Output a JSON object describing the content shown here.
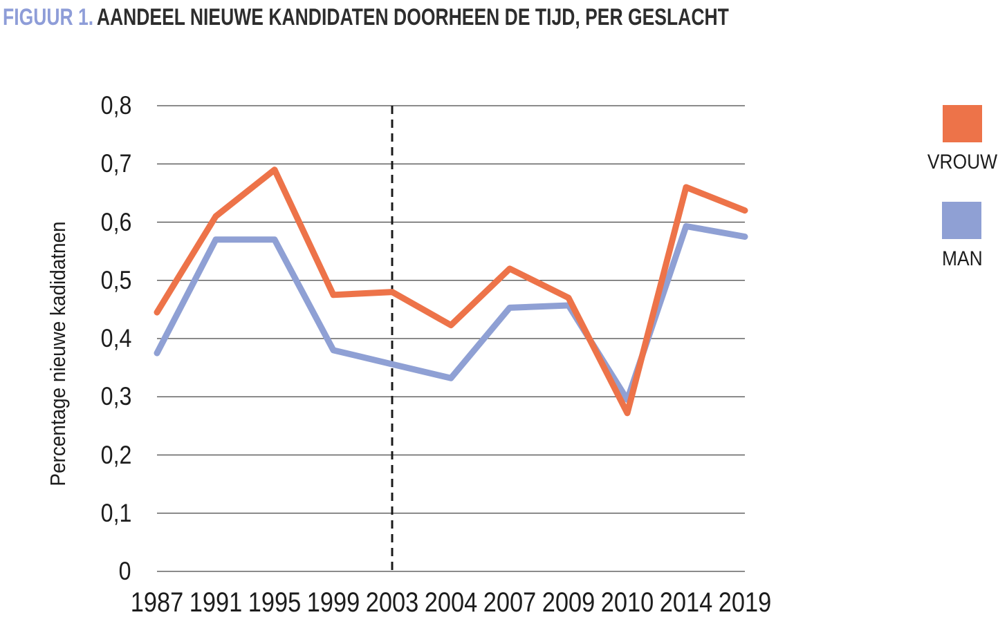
{
  "title": {
    "figure_label": "FIGUUR 1.",
    "text": "AANDEEL NIEUWE KANDIDATEN DOORHEEN DE TIJD, PER GESLACHT"
  },
  "colors": {
    "vrouw": "#ED7349",
    "man": "#8FA0D4",
    "figure_label": "#8E9DD8",
    "title_text": "#2D2D2D",
    "gridline": "#444444",
    "dashed_line": "#1A1A1A",
    "tick_text": "#1C1C1C",
    "background": "#FFFFFF"
  },
  "legend": {
    "items": [
      {
        "label": "VROUW",
        "color_key": "vrouw"
      },
      {
        "label": "MAN",
        "color_key": "man"
      }
    ]
  },
  "chart_data": {
    "type": "line",
    "title": "FIGUUR 1. AANDEEL NIEUWE KANDIDATEN DOORHEEN DE TIJD, PER GESLACHT",
    "xlabel": "",
    "ylabel": "Percentage nieuwe kadidatnen",
    "categories": [
      "1987",
      "1991",
      "1995",
      "1999",
      "2003",
      "2004",
      "2007",
      "2009",
      "2010",
      "2014",
      "2019"
    ],
    "series": [
      {
        "name": "VROUW",
        "color": "#ED7349",
        "values": [
          0.445,
          0.61,
          0.69,
          0.475,
          0.48,
          0.423,
          0.52,
          0.47,
          0.272,
          0.66,
          0.62
        ]
      },
      {
        "name": "MAN",
        "color": "#8FA0D4",
        "values": [
          0.375,
          0.57,
          0.57,
          0.38,
          0.356,
          0.332,
          0.453,
          0.457,
          0.295,
          0.593,
          0.575
        ]
      }
    ],
    "ylim": [
      0,
      0.8
    ],
    "ytick_step": 0.1,
    "ytick_labels": [
      "0",
      "0,1",
      "0,2",
      "0,3",
      "0,4",
      "0,5",
      "0,6",
      "0,7",
      "0,8"
    ],
    "grid": true,
    "legend_position": "right",
    "annotations": [
      {
        "type": "vline",
        "category": "2003",
        "style": "dashed"
      }
    ]
  }
}
